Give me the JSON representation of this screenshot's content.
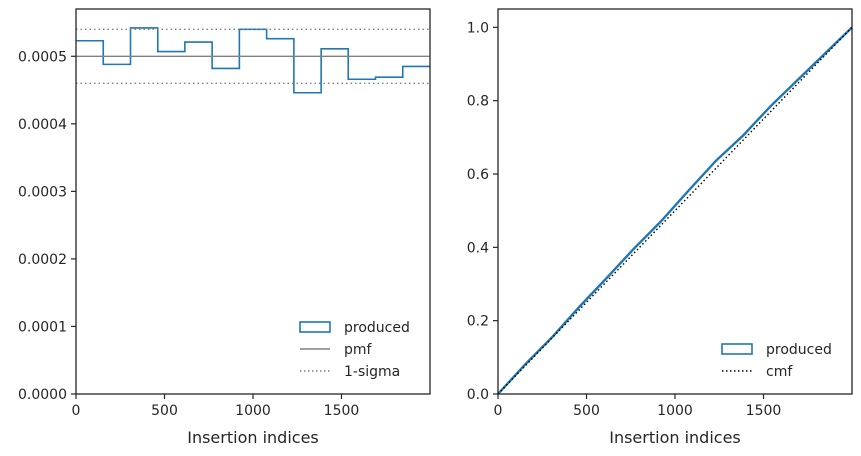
{
  "chart_data": [
    {
      "type": "step",
      "xlabel": "Insertion indices",
      "ylabel": "",
      "xlim": [
        0,
        2000
      ],
      "ylim": [
        0,
        0.00057
      ],
      "xticks": [
        0,
        500,
        1000,
        1500
      ],
      "yticks": [
        0,
        0.0001,
        0.0002,
        0.0003,
        0.0004,
        0.0005
      ],
      "ytick_labels": [
        "0.0000",
        "0.0001",
        "0.0002",
        "0.0003",
        "0.0004",
        "0.0005"
      ],
      "legend": {
        "position": "lower-right",
        "entries": [
          "produced",
          "pmf",
          "1-sigma"
        ]
      },
      "series": [
        {
          "name": "produced",
          "color": "#1f77b4",
          "bin_edges": [
            0,
            154,
            308,
            462,
            615,
            769,
            923,
            1077,
            1231,
            1385,
            1538,
            1692,
            1846,
            2000
          ],
          "values": [
            0.000523,
            0.000488,
            0.000542,
            0.000507,
            0.000521,
            0.000482,
            0.00054,
            0.000526,
            0.000446,
            0.000511,
            0.000466,
            0.000469,
            0.000485
          ]
        },
        {
          "name": "pmf",
          "color": "#808080",
          "style": "solid",
          "y": 0.0005
        },
        {
          "name": "1-sigma",
          "color": "#808080",
          "style": "dotted",
          "y": [
            0.00046,
            0.00054
          ]
        }
      ]
    },
    {
      "type": "line",
      "xlabel": "Insertion indices",
      "ylabel": "",
      "xlim": [
        0,
        2000
      ],
      "ylim": [
        0,
        1.05
      ],
      "xticks": [
        0,
        500,
        1000,
        1500
      ],
      "yticks": [
        0,
        0.2,
        0.4,
        0.6,
        0.8,
        1.0
      ],
      "ytick_labels": [
        "0.0",
        "0.2",
        "0.4",
        "0.6",
        "0.8",
        "1.0"
      ],
      "legend": {
        "position": "lower-right",
        "entries": [
          "produced",
          "cmf"
        ]
      },
      "series": [
        {
          "name": "produced",
          "color": "#1f77b4",
          "x": [
            0,
            154,
            308,
            462,
            615,
            769,
            923,
            1077,
            1231,
            1385,
            1538,
            1692,
            1846,
            2000
          ],
          "y": [
            0,
            0.081,
            0.156,
            0.239,
            0.317,
            0.397,
            0.472,
            0.555,
            0.636,
            0.705,
            0.784,
            0.856,
            0.928,
            1.0
          ]
        },
        {
          "name": "cmf",
          "color": "#000000",
          "style": "dotted",
          "x": [
            0,
            2000
          ],
          "y": [
            0,
            1.0
          ]
        }
      ]
    }
  ]
}
